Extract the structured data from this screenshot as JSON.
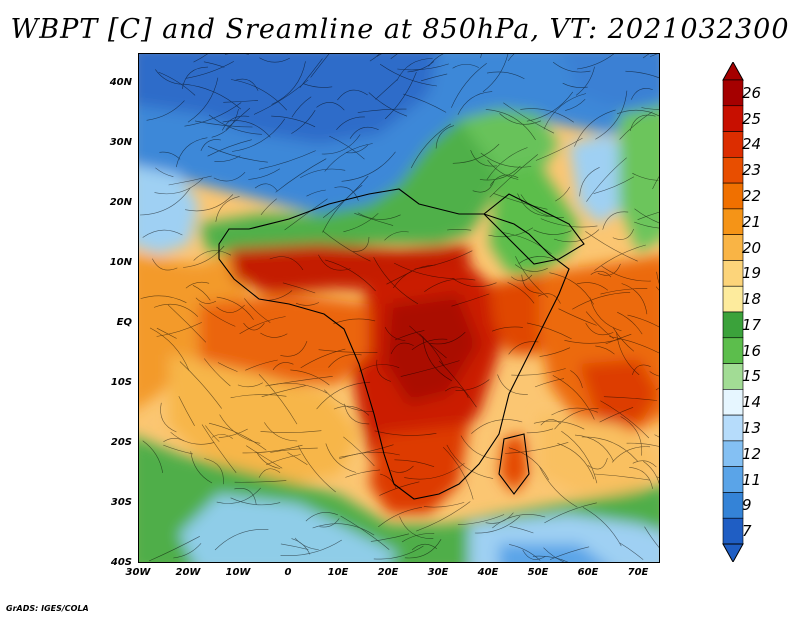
{
  "title": "WBPT [C] and Sreamline at 850hPa, VT: 2021032300",
  "footer": "GrADS: IGES/COLA",
  "y_ticks": [
    "40N",
    "30N",
    "20N",
    "10N",
    "EQ",
    "10S",
    "20S",
    "30S",
    "40S"
  ],
  "x_ticks": [
    "30W",
    "20W",
    "10W",
    "0",
    "10E",
    "20E",
    "30E",
    "40E",
    "50E",
    "60E",
    "70E"
  ],
  "colorbar": {
    "labels": [
      "26",
      "25",
      "24",
      "23",
      "22",
      "21",
      "20",
      "19",
      "18",
      "17",
      "16",
      "15",
      "14",
      "13",
      "12",
      "11",
      "9",
      "7"
    ],
    "colors": [
      "#a50000",
      "#c80f00",
      "#dc2d00",
      "#e84e00",
      "#f07000",
      "#f59417",
      "#f9b445",
      "#fcd47a",
      "#fdeb9d",
      "#3ba23b",
      "#5cbe4c",
      "#a2dc95",
      "#e6f6ff",
      "#b6dcfb",
      "#84c0f3",
      "#5aa4e8",
      "#3483d7",
      "#1f5ec4"
    ]
  }
}
